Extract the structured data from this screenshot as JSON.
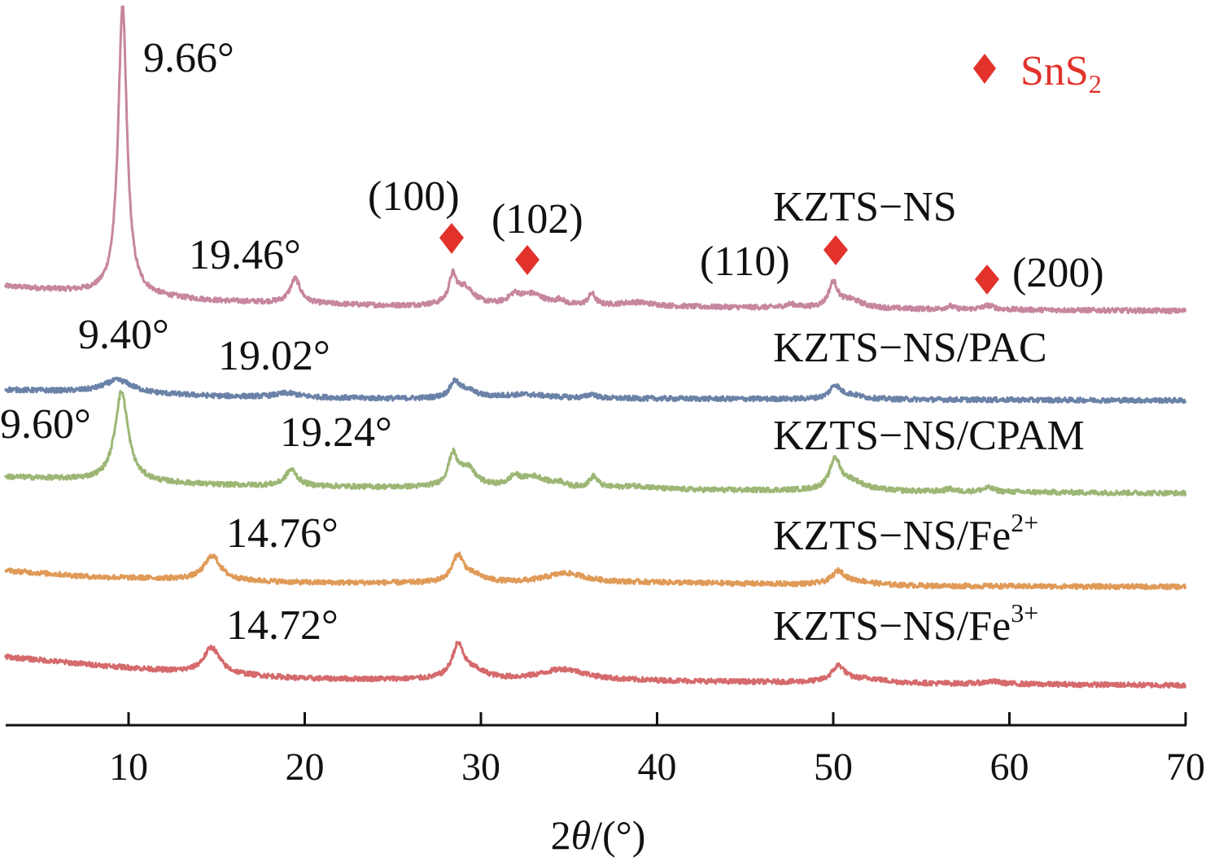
{
  "chart_data": {
    "type": "line",
    "title": "",
    "xlabel": "2θ/(°)",
    "xlabel_parts": {
      "prefix": "2",
      "theta": "θ",
      "suffix": "/(°)"
    },
    "ylabel": "",
    "xlim": [
      3,
      70
    ],
    "x_ticks": [
      10,
      20,
      30,
      40,
      50,
      60,
      70
    ],
    "x_tick_labels": [
      "10",
      "20",
      "30",
      "40",
      "50",
      "60",
      "70"
    ],
    "grid": false,
    "y_axis_visible": false,
    "legend": {
      "placement": "top-right",
      "marker": "diamond",
      "label_main": "SnS",
      "label_sub": "2",
      "color": "#e2322b"
    },
    "series": [
      {
        "name": "KZTS-NS",
        "label_main": "KZTS−NS",
        "label_sup": "",
        "color": "#c7869f",
        "offset": 4,
        "baseline": [
          [
            3,
            0.3
          ],
          [
            8,
            0.22
          ],
          [
            15,
            0.12
          ],
          [
            25,
            0.06
          ],
          [
            40,
            0.05
          ],
          [
            55,
            0.02
          ],
          [
            70,
            0.0
          ]
        ],
        "peaks": [
          {
            "x": 9.66,
            "h": 3.55,
            "w": 0.3
          },
          {
            "x": 19.46,
            "h": 0.3,
            "w": 0.35
          },
          {
            "x": 28.4,
            "h": 0.32,
            "w": 0.25
          },
          {
            "x": 29.1,
            "h": 0.22,
            "w": 0.6
          },
          {
            "x": 31.9,
            "h": 0.1,
            "w": 0.4
          },
          {
            "x": 32.9,
            "h": 0.14,
            "w": 0.9
          },
          {
            "x": 34.5,
            "h": 0.06,
            "w": 0.25
          },
          {
            "x": 36.3,
            "h": 0.14,
            "w": 0.25
          },
          {
            "x": 38.8,
            "h": 0.05,
            "w": 1.2
          },
          {
            "x": 47.6,
            "h": 0.04,
            "w": 0.4
          },
          {
            "x": 50.0,
            "h": 0.3,
            "w": 0.3
          },
          {
            "x": 51.0,
            "h": 0.1,
            "w": 0.8
          },
          {
            "x": 56.6,
            "h": 0.04,
            "w": 0.25
          },
          {
            "x": 58.8,
            "h": 0.05,
            "w": 0.4
          }
        ],
        "annotations": [
          {
            "text": "9.66°",
            "x": 9.66
          },
          {
            "text": "19.46°",
            "x": 19.46
          }
        ]
      },
      {
        "name": "KZTS-NS/PAC",
        "label_main": "KZTS−NS/PAC",
        "label_sup": "",
        "color": "#6b82a8",
        "offset": 3,
        "baseline": [
          [
            3,
            0.08
          ],
          [
            8,
            0.05
          ],
          [
            15,
            0.0
          ],
          [
            25,
            -0.03
          ],
          [
            40,
            -0.03
          ],
          [
            55,
            -0.04
          ],
          [
            70,
            -0.05
          ]
        ],
        "peaks": [
          {
            "x": 9.4,
            "h": 0.16,
            "w": 1.0
          },
          {
            "x": 19.02,
            "h": 0.05,
            "w": 0.8
          },
          {
            "x": 28.5,
            "h": 0.18,
            "w": 0.3
          },
          {
            "x": 29.2,
            "h": 0.1,
            "w": 0.6
          },
          {
            "x": 32.5,
            "h": 0.05,
            "w": 1.8
          },
          {
            "x": 36.3,
            "h": 0.05,
            "w": 0.3
          },
          {
            "x": 50.1,
            "h": 0.16,
            "w": 0.35
          },
          {
            "x": 51.0,
            "h": 0.05,
            "w": 0.8
          }
        ],
        "annotations": [
          {
            "text": "9.40°",
            "x": 9.4
          },
          {
            "text": "19.02°",
            "x": 19.02
          }
        ]
      },
      {
        "name": "KZTS-NS/CPAM",
        "label_main": "KZTS−NS/CPAM",
        "label_sup": "",
        "color": "#9cb775",
        "offset": 2,
        "baseline": [
          [
            3,
            0.1
          ],
          [
            8,
            0.06
          ],
          [
            15,
            0.0
          ],
          [
            25,
            -0.03
          ],
          [
            40,
            -0.06
          ],
          [
            55,
            -0.08
          ],
          [
            70,
            -0.1
          ]
        ],
        "peaks": [
          {
            "x": 9.6,
            "h": 1.1,
            "w": 0.45
          },
          {
            "x": 19.24,
            "h": 0.2,
            "w": 0.4
          },
          {
            "x": 28.4,
            "h": 0.36,
            "w": 0.3
          },
          {
            "x": 29.2,
            "h": 0.24,
            "w": 0.6
          },
          {
            "x": 31.9,
            "h": 0.1,
            "w": 0.35
          },
          {
            "x": 33.0,
            "h": 0.14,
            "w": 1.0
          },
          {
            "x": 34.5,
            "h": 0.05,
            "w": 0.3
          },
          {
            "x": 36.4,
            "h": 0.14,
            "w": 0.3
          },
          {
            "x": 38.8,
            "h": 0.04,
            "w": 1.2
          },
          {
            "x": 50.1,
            "h": 0.36,
            "w": 0.35
          },
          {
            "x": 51.0,
            "h": 0.12,
            "w": 0.9
          },
          {
            "x": 56.6,
            "h": 0.03,
            "w": 0.3
          },
          {
            "x": 58.8,
            "h": 0.05,
            "w": 0.4
          }
        ],
        "annotations": [
          {
            "text": "9.60°",
            "x": 9.6
          },
          {
            "text": "19.24°",
            "x": 19.24
          }
        ]
      },
      {
        "name": "KZTS-NS/Fe2+",
        "label_main": "KZTS−NS/Fe",
        "label_sup": "2+",
        "color": "#e09a58",
        "offset": 1,
        "baseline": [
          [
            3,
            0.1
          ],
          [
            8,
            0.02
          ],
          [
            12,
            0.0
          ],
          [
            20,
            -0.05
          ],
          [
            30,
            -0.06
          ],
          [
            40,
            -0.05
          ],
          [
            55,
            -0.09
          ],
          [
            70,
            -0.1
          ]
        ],
        "peaks": [
          {
            "x": 14.76,
            "h": 0.3,
            "w": 0.55
          },
          {
            "x": 28.7,
            "h": 0.32,
            "w": 0.4
          },
          {
            "x": 29.6,
            "h": 0.08,
            "w": 0.8
          },
          {
            "x": 34.8,
            "h": 0.12,
            "w": 1.4
          },
          {
            "x": 50.3,
            "h": 0.16,
            "w": 0.45
          },
          {
            "x": 51.5,
            "h": 0.04,
            "w": 1.0
          }
        ],
        "annotations": [
          {
            "text": "14.76°",
            "x": 14.76
          }
        ]
      },
      {
        "name": "KZTS-NS/Fe3+",
        "label_main": "KZTS−NS/Fe",
        "label_sup": "3+",
        "color": "#d56a6c",
        "offset": 0,
        "baseline": [
          [
            3,
            0.25
          ],
          [
            8,
            0.15
          ],
          [
            12,
            0.08
          ],
          [
            20,
            -0.02
          ],
          [
            30,
            -0.04
          ],
          [
            40,
            -0.05
          ],
          [
            55,
            -0.08
          ],
          [
            70,
            -0.1
          ]
        ],
        "peaks": [
          {
            "x": 14.72,
            "h": 0.32,
            "w": 0.55
          },
          {
            "x": 28.7,
            "h": 0.4,
            "w": 0.4
          },
          {
            "x": 29.6,
            "h": 0.1,
            "w": 0.9
          },
          {
            "x": 34.7,
            "h": 0.14,
            "w": 1.6
          },
          {
            "x": 50.3,
            "h": 0.2,
            "w": 0.45
          },
          {
            "x": 52.0,
            "h": 0.05,
            "w": 1.2
          },
          {
            "x": 59.0,
            "h": 0.03,
            "w": 0.6
          }
        ],
        "annotations": [
          {
            "text": "14.72°",
            "x": 14.72
          }
        ]
      }
    ],
    "phase_markers": [
      {
        "phase": "SnS2",
        "hkl": "(100)",
        "x": 28.3
      },
      {
        "phase": "SnS2",
        "hkl": "(102)",
        "x": 32.6
      },
      {
        "phase": "SnS2",
        "hkl": "(110)",
        "x": 50.0
      },
      {
        "phase": "SnS2",
        "hkl": "(200)",
        "x": 58.8
      }
    ]
  }
}
